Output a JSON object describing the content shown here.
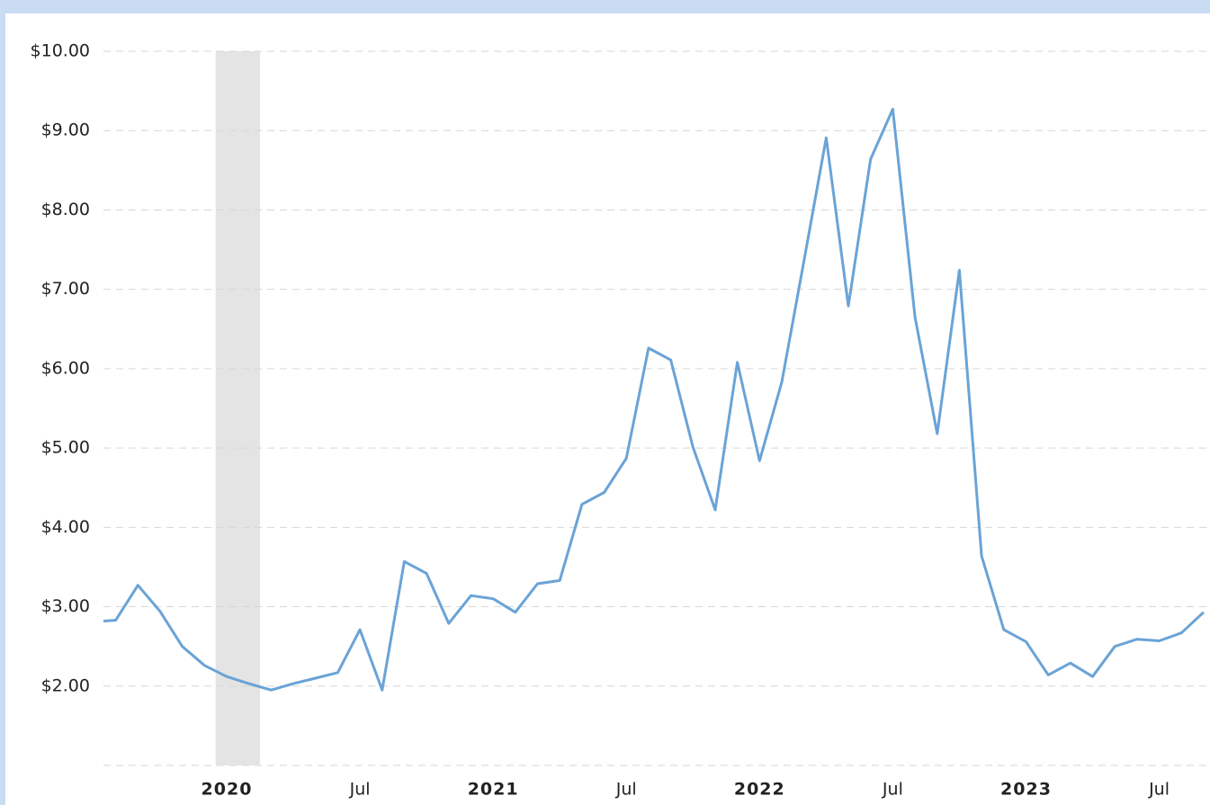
{
  "chart_data": {
    "type": "line",
    "x": [
      "2019-07",
      "2019-08",
      "2019-09",
      "2019-10",
      "2019-11",
      "2019-12",
      "2020-01",
      "2020-02",
      "2020-03",
      "2020-04",
      "2020-05",
      "2020-06",
      "2020-07",
      "2020-08",
      "2020-09",
      "2020-10",
      "2020-11",
      "2020-12",
      "2021-01",
      "2021-02",
      "2021-03",
      "2021-04",
      "2021-05",
      "2021-06",
      "2021-07",
      "2021-08",
      "2021-09",
      "2021-10",
      "2021-11",
      "2021-12",
      "2022-01",
      "2022-02",
      "2022-03",
      "2022-04",
      "2022-05",
      "2022-06",
      "2022-07",
      "2022-08",
      "2022-09",
      "2022-10",
      "2022-11",
      "2022-12",
      "2023-01",
      "2023-02",
      "2023-03",
      "2023-04",
      "2023-05",
      "2023-06",
      "2023-07",
      "2023-08",
      "2023-09"
    ],
    "series": [
      {
        "color": "#6aa3d6",
        "values": [
          2.81,
          2.83,
          3.27,
          2.94,
          2.5,
          2.26,
          2.12,
          2.03,
          1.95,
          2.03,
          2.1,
          2.17,
          2.71,
          1.95,
          3.57,
          3.42,
          2.79,
          3.14,
          3.1,
          2.93,
          3.29,
          3.33,
          4.29,
          4.44,
          4.87,
          6.26,
          6.11,
          5.01,
          4.22,
          6.08,
          4.84,
          5.83,
          7.36,
          8.91,
          6.79,
          8.64,
          9.27,
          6.65,
          5.18,
          7.24,
          3.64,
          2.71,
          2.56,
          2.14,
          2.29,
          2.12,
          2.5,
          2.59,
          2.57,
          2.67,
          2.93
        ]
      }
    ],
    "ylim": [
      1,
      10
    ],
    "yticks": [
      {
        "value": 2,
        "label": "$2.00"
      },
      {
        "value": 3,
        "label": "$3.00"
      },
      {
        "value": 4,
        "label": "$4.00"
      },
      {
        "value": 5,
        "label": "$5.00"
      },
      {
        "value": 6,
        "label": "$6.00"
      },
      {
        "value": 7,
        "label": "$7.00"
      },
      {
        "value": 8,
        "label": "$8.00"
      },
      {
        "value": 9,
        "label": "$9.00"
      },
      {
        "value": 10,
        "label": "$10.00"
      }
    ],
    "xticks": [
      {
        "value": "2020-01",
        "label": "2020"
      },
      {
        "value": "2020-07",
        "label": "Jul"
      },
      {
        "value": "2021-01",
        "label": "2021"
      },
      {
        "value": "2021-07",
        "label": "Jul"
      },
      {
        "value": "2022-01",
        "label": "2022"
      },
      {
        "value": "2022-07",
        "label": "Jul"
      },
      {
        "value": "2023-01",
        "label": "2023"
      },
      {
        "value": "2023-07",
        "label": "Jul"
      }
    ],
    "recession": [
      "2020-01",
      "2020-02"
    ],
    "grid": true
  }
}
